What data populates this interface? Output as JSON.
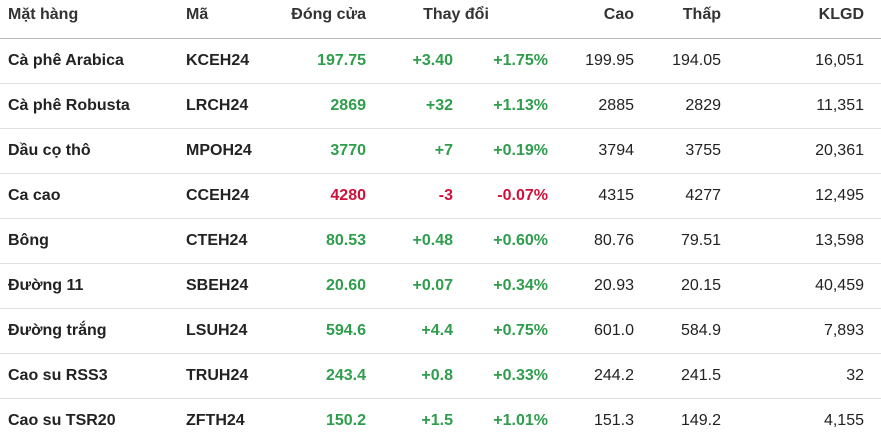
{
  "table": {
    "header": [
      "Mặt hàng",
      "Mã",
      "Đóng cửa",
      "Thay đổi",
      "Cao",
      "Thấp",
      "KLGD"
    ],
    "rows": [
      {
        "name": "Cà phê Arabica",
        "code": "KCEH24",
        "close": "197.75",
        "change": "+3.40",
        "change_pct": "+1.75%",
        "high": "199.95",
        "low": "194.05",
        "volume": "16,051",
        "color": "#2e9d4c"
      },
      {
        "name": "Cà phê Robusta",
        "code": "LRCH24",
        "close": "2869",
        "change": "+32",
        "change_pct": "+1.13%",
        "high": "2885",
        "low": "2829",
        "volume": "11,351",
        "color": "#2e9d4c"
      },
      {
        "name": "Dầu cọ thô",
        "code": "MPOH24",
        "close": "3770",
        "change": "+7",
        "change_pct": "+0.19%",
        "high": "3794",
        "low": "3755",
        "volume": "20,361",
        "color": "#2e9d4c"
      },
      {
        "name": "Ca cao",
        "code": "CCEH24",
        "close": "4280",
        "change": "-3",
        "change_pct": "-0.07%",
        "high": "4315",
        "low": "4277",
        "volume": "12,495",
        "color": "#d0103a"
      },
      {
        "name": "Bông",
        "code": "CTEH24",
        "close": "80.53",
        "change": "+0.48",
        "change_pct": "+0.60%",
        "high": "80.76",
        "low": "79.51",
        "volume": "13,598",
        "color": "#2e9d4c"
      },
      {
        "name": "Đường 11",
        "code": "SBEH24",
        "close": "20.60",
        "change": "+0.07",
        "change_pct": "+0.34%",
        "high": "20.93",
        "low": "20.15",
        "volume": "40,459",
        "color": "#2e9d4c"
      },
      {
        "name": "Đường trắng",
        "code": "LSUH24",
        "close": "594.6",
        "change": "+4.4",
        "change_pct": "+0.75%",
        "high": "601.0",
        "low": "584.9",
        "volume": "7,893",
        "color": "#2e9d4c"
      },
      {
        "name": "Cao su RSS3",
        "code": "TRUH24",
        "close": "243.4",
        "change": "+0.8",
        "change_pct": "+0.33%",
        "high": "244.2",
        "low": "241.5",
        "volume": "32",
        "color": "#2e9d4c"
      },
      {
        "name": "Cao su TSR20",
        "code": "ZFTH24",
        "close": "150.2",
        "change": "+1.5",
        "change_pct": "+1.01%",
        "high": "151.3",
        "low": "149.2",
        "volume": "4,155",
        "color": "#2e9d4c"
      }
    ]
  }
}
